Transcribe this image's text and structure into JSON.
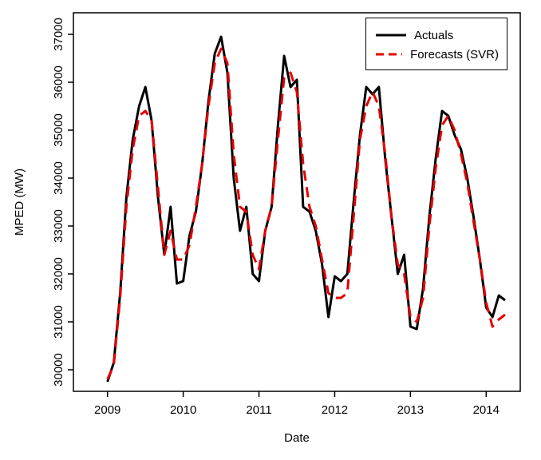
{
  "figure": {
    "background": "#ffffff"
  },
  "legend": {
    "items": [
      {
        "label": "Actuals",
        "color": "#000000",
        "dash": "solid"
      },
      {
        "label": "Forecasts (SVR)",
        "color": "#e60000",
        "dash": "dashed"
      }
    ]
  },
  "chart_data": {
    "type": "line",
    "title": "",
    "xlabel": "Date",
    "ylabel": "MPED (MW)",
    "xlim": [
      2008.55,
      2014.45
    ],
    "ylim": [
      29550,
      37450
    ],
    "x_ticks": [
      2009,
      2010,
      2011,
      2012,
      2013,
      2014
    ],
    "y_ticks": [
      30000,
      31000,
      32000,
      33000,
      34000,
      35000,
      36000,
      37000
    ],
    "grid": false,
    "legend_position": "top-right",
    "x": [
      2009.0,
      2009.083,
      2009.167,
      2009.25,
      2009.333,
      2009.417,
      2009.5,
      2009.583,
      2009.667,
      2009.75,
      2009.833,
      2009.917,
      2010.0,
      2010.083,
      2010.167,
      2010.25,
      2010.333,
      2010.417,
      2010.5,
      2010.583,
      2010.667,
      2010.75,
      2010.833,
      2010.917,
      2011.0,
      2011.083,
      2011.167,
      2011.25,
      2011.333,
      2011.417,
      2011.5,
      2011.583,
      2011.667,
      2011.75,
      2011.833,
      2011.917,
      2012.0,
      2012.083,
      2012.167,
      2012.25,
      2012.333,
      2012.417,
      2012.5,
      2012.583,
      2012.667,
      2012.75,
      2012.833,
      2012.917,
      2013.0,
      2013.083,
      2013.167,
      2013.25,
      2013.333,
      2013.417,
      2013.5,
      2013.583,
      2013.667,
      2013.75,
      2013.833,
      2013.917,
      2014.0,
      2014.083,
      2014.167,
      2014.25
    ],
    "series": [
      {
        "name": "Actuals",
        "color": "#000000",
        "style": "solid",
        "width": 3,
        "values": [
          29750,
          30150,
          31600,
          33600,
          34800,
          35500,
          35900,
          35200,
          33600,
          32400,
          33400,
          31800,
          31850,
          32800,
          33300,
          34300,
          35600,
          36600,
          36950,
          36200,
          34000,
          32900,
          33400,
          32000,
          31850,
          32900,
          33400,
          35100,
          36550,
          35900,
          36050,
          33400,
          33300,
          32900,
          32200,
          31100,
          31950,
          31850,
          32000,
          33500,
          34900,
          35900,
          35750,
          35900,
          34400,
          33200,
          32000,
          32400,
          30900,
          30850,
          31700,
          33200,
          34400,
          35400,
          35300,
          34900,
          34600,
          34000,
          33200,
          32300,
          31300,
          31100,
          31550,
          31450
        ]
      },
      {
        "name": "Forecasts (SVR)",
        "color": "#e60000",
        "style": "dashed",
        "width": 3,
        "values": [
          29800,
          30100,
          31500,
          33400,
          34600,
          35300,
          35400,
          35200,
          33800,
          32400,
          32900,
          32300,
          32300,
          32600,
          33400,
          34300,
          35500,
          36400,
          36700,
          36400,
          34500,
          33400,
          33300,
          32400,
          32100,
          32900,
          33400,
          34800,
          36100,
          36200,
          35800,
          34300,
          33400,
          33000,
          32300,
          31600,
          31500,
          31500,
          31600,
          33200,
          34800,
          35500,
          35800,
          35500,
          34500,
          33200,
          32200,
          32000,
          31100,
          31000,
          31500,
          33000,
          34200,
          35100,
          35300,
          35000,
          34500,
          33900,
          33100,
          32300,
          31400,
          30900,
          31050,
          31150
        ]
      }
    ]
  }
}
